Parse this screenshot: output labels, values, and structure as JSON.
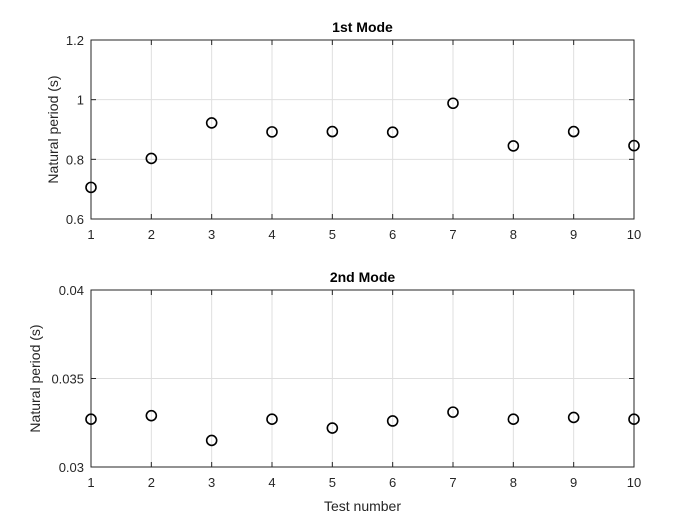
{
  "chart_data": [
    {
      "type": "scatter",
      "title": "1st Mode",
      "xlabel": "",
      "ylabel": "Natural period (s)",
      "xlim": [
        1,
        10
      ],
      "ylim": [
        0.6,
        1.2
      ],
      "x_ticks": [
        1,
        2,
        3,
        4,
        5,
        6,
        7,
        8,
        9,
        10
      ],
      "y_ticks": [
        0.6,
        0.8,
        1,
        1.2
      ],
      "y_tick_labels": [
        "0.6",
        "0.8",
        "1",
        "1.2"
      ],
      "grid": true,
      "marker": "open-circle",
      "x": [
        1,
        2,
        3,
        4,
        5,
        6,
        7,
        8,
        9,
        10
      ],
      "y": [
        0.706,
        0.803,
        0.922,
        0.892,
        0.893,
        0.891,
        0.988,
        0.845,
        0.893,
        0.846
      ]
    },
    {
      "type": "scatter",
      "title": "2nd Mode",
      "xlabel": "Test number",
      "ylabel": "Natural period (s)",
      "xlim": [
        1,
        10
      ],
      "ylim": [
        0.03,
        0.04
      ],
      "x_ticks": [
        1,
        2,
        3,
        4,
        5,
        6,
        7,
        8,
        9,
        10
      ],
      "y_ticks": [
        0.03,
        0.035,
        0.04
      ],
      "y_tick_labels": [
        "0.03",
        "0.035",
        "0.04"
      ],
      "grid": true,
      "marker": "open-circle",
      "x": [
        1,
        2,
        3,
        4,
        5,
        6,
        7,
        8,
        9,
        10
      ],
      "y": [
        0.0327,
        0.0329,
        0.0315,
        0.0327,
        0.0322,
        0.0326,
        0.0331,
        0.0327,
        0.0328,
        0.0327
      ]
    }
  ]
}
